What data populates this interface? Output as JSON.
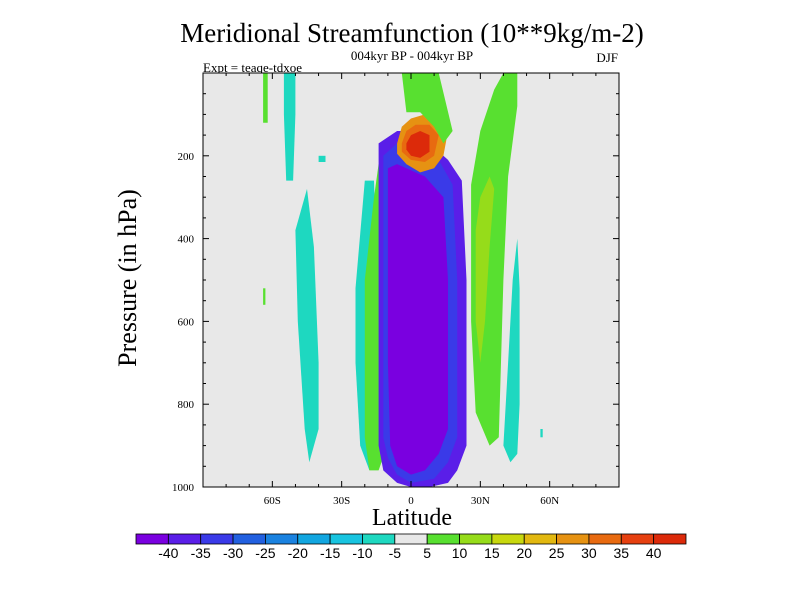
{
  "chart_data": {
    "type": "heatmap",
    "title": "Meridional Streamfunction (10**9kg/m-2)",
    "subtitle": "004kyr BP - 004kyr BP",
    "left_label": "Expt = teaqe-tdxoe",
    "right_label": "DJF",
    "xlabel": "Latitude",
    "ylabel": "Pressure (in hPa)",
    "xlim": [
      -90,
      90
    ],
    "ylim": [
      0,
      1000
    ],
    "x_ticks": [
      {
        "value": -60,
        "label": "60S"
      },
      {
        "value": -30,
        "label": "30S"
      },
      {
        "value": 0,
        "label": "0"
      },
      {
        "value": 30,
        "label": "30N"
      },
      {
        "value": 60,
        "label": "60N"
      }
    ],
    "y_ticks": [
      {
        "value": 200,
        "label": "200"
      },
      {
        "value": 400,
        "label": "400"
      },
      {
        "value": 600,
        "label": "600"
      },
      {
        "value": 800,
        "label": "800"
      },
      {
        "value": 1000,
        "label": "1000"
      }
    ],
    "colorbar": {
      "levels": [
        "-40",
        "-35",
        "-30",
        "-25",
        "-20",
        "-15",
        "-10",
        "-5",
        "5",
        "10",
        "15",
        "20",
        "25",
        "30",
        "35",
        "40"
      ],
      "colors": [
        "#7a00e0",
        "#5a1ee8",
        "#3a3ae8",
        "#2260e0",
        "#1a82e0",
        "#12a6e0",
        "#18c4e0",
        "#1ed8c0",
        "#e8e8e8",
        "#58e030",
        "#96dc1a",
        "#c8d80e",
        "#e2b810",
        "#e69212",
        "#e86a10",
        "#e64010",
        "#dc2a0a"
      ]
    },
    "regions": [
      {
        "name": "background-band",
        "class": 8,
        "poly": [
          [
            -90,
            1000
          ],
          [
            -90,
            0
          ],
          [
            90,
            0
          ],
          [
            90,
            1000
          ]
        ]
      },
      {
        "name": "neutral-patch-sh",
        "class": 8,
        "poly": [
          [
            -78,
            1000
          ],
          [
            -78,
            120
          ],
          [
            -68,
            120
          ],
          [
            -70,
            330
          ],
          [
            -74,
            780
          ],
          [
            -72,
            1000
          ]
        ]
      },
      {
        "name": "neutral-patch-nh",
        "class": 8,
        "poly": [
          [
            62,
            1000
          ],
          [
            60,
            500
          ],
          [
            62,
            250
          ],
          [
            72,
            250
          ],
          [
            72,
            1000
          ]
        ]
      },
      {
        "name": "green-strip-sh-top",
        "class": 9,
        "poly": [
          [
            -64,
            0
          ],
          [
            -62,
            0
          ],
          [
            -62,
            120
          ],
          [
            -64,
            120
          ]
        ]
      },
      {
        "name": "cyan-strip-sh-top",
        "class": 7,
        "poly": [
          [
            -55,
            0
          ],
          [
            -50,
            0
          ],
          [
            -50,
            100
          ],
          [
            -51,
            260
          ],
          [
            -54,
            260
          ],
          [
            -55,
            100
          ]
        ]
      },
      {
        "name": "cyan-speck-sh",
        "class": 7,
        "poly": [
          [
            -40,
            200
          ],
          [
            -37,
            200
          ],
          [
            -37,
            215
          ],
          [
            -40,
            215
          ]
        ]
      },
      {
        "name": "cyan-column-sh",
        "class": 7,
        "poly": [
          [
            -50,
            380
          ],
          [
            -45,
            280
          ],
          [
            -42,
            420
          ],
          [
            -40,
            700
          ],
          [
            -40,
            860
          ],
          [
            -44,
            940
          ],
          [
            -46,
            860
          ],
          [
            -49,
            600
          ]
        ]
      },
      {
        "name": "green-speck-sh",
        "class": 9,
        "poly": [
          [
            -64,
            520
          ],
          [
            -63,
            520
          ],
          [
            -63,
            560
          ],
          [
            -64,
            560
          ]
        ]
      },
      {
        "name": "cyan-column-mid",
        "class": 7,
        "poly": [
          [
            -24,
            520
          ],
          [
            -20,
            260
          ],
          [
            -16,
            260
          ],
          [
            -14,
            600
          ],
          [
            -14,
            900
          ],
          [
            -18,
            960
          ],
          [
            -22,
            900
          ],
          [
            -24,
            700
          ]
        ]
      },
      {
        "name": "green-column-sh",
        "class": 9,
        "poly": [
          [
            -20,
            880
          ],
          [
            -20,
            500
          ],
          [
            -16,
            300
          ],
          [
            -14,
            220
          ],
          [
            -10,
            210
          ],
          [
            -9,
            500
          ],
          [
            -9,
            880
          ],
          [
            -14,
            960
          ],
          [
            -18,
            960
          ]
        ]
      },
      {
        "name": "purple-core-outer",
        "class": 1,
        "poly": [
          [
            -14,
            170
          ],
          [
            -6,
            140
          ],
          [
            4,
            140
          ],
          [
            10,
            180
          ],
          [
            16,
            210
          ],
          [
            22,
            260
          ],
          [
            24,
            500
          ],
          [
            24,
            900
          ],
          [
            20,
            960
          ],
          [
            16,
            990
          ],
          [
            8,
            1000
          ],
          [
            0,
            1000
          ],
          [
            -6,
            990
          ],
          [
            -12,
            960
          ],
          [
            -14,
            900
          ],
          [
            -14,
            500
          ]
        ]
      },
      {
        "name": "purple-core-mid",
        "class": 2,
        "poly": [
          [
            -12,
            200
          ],
          [
            -6,
            170
          ],
          [
            4,
            170
          ],
          [
            12,
            210
          ],
          [
            18,
            270
          ],
          [
            20,
            500
          ],
          [
            20,
            880
          ],
          [
            16,
            940
          ],
          [
            10,
            980
          ],
          [
            0,
            990
          ],
          [
            -6,
            970
          ],
          [
            -10,
            930
          ],
          [
            -12,
            880
          ],
          [
            -12,
            500
          ]
        ]
      },
      {
        "name": "purple-core-inner",
        "class": 0,
        "poly": [
          [
            -10,
            230
          ],
          [
            -6,
            220
          ],
          [
            6,
            250
          ],
          [
            14,
            300
          ],
          [
            16,
            500
          ],
          [
            16,
            860
          ],
          [
            12,
            920
          ],
          [
            6,
            960
          ],
          [
            0,
            970
          ],
          [
            -6,
            950
          ],
          [
            -9,
            900
          ],
          [
            -10,
            700
          ],
          [
            -10,
            400
          ]
        ]
      },
      {
        "name": "red-core-outer",
        "class": 13,
        "poly": [
          [
            -6,
            170
          ],
          [
            -4,
            130
          ],
          [
            0,
            110
          ],
          [
            6,
            100
          ],
          [
            12,
            110
          ],
          [
            16,
            140
          ],
          [
            14,
            200
          ],
          [
            10,
            230
          ],
          [
            4,
            240
          ],
          [
            -2,
            220
          ],
          [
            -6,
            195
          ]
        ]
      },
      {
        "name": "red-core-mid",
        "class": 14,
        "poly": [
          [
            -4,
            170
          ],
          [
            -2,
            140
          ],
          [
            2,
            125
          ],
          [
            8,
            125
          ],
          [
            12,
            150
          ],
          [
            10,
            200
          ],
          [
            6,
            215
          ],
          [
            0,
            210
          ],
          [
            -4,
            190
          ]
        ]
      },
      {
        "name": "red-core-inner",
        "class": 16,
        "poly": [
          [
            -2,
            170
          ],
          [
            0,
            150
          ],
          [
            4,
            140
          ],
          [
            8,
            150
          ],
          [
            8,
            190
          ],
          [
            4,
            205
          ],
          [
            0,
            200
          ],
          [
            -2,
            185
          ]
        ]
      },
      {
        "name": "green-halo-top",
        "class": 9,
        "poly": [
          [
            -4,
            0
          ],
          [
            12,
            0
          ],
          [
            18,
            140
          ],
          [
            14,
            170
          ],
          [
            10,
            130
          ],
          [
            4,
            95
          ],
          [
            -2,
            95
          ]
        ]
      },
      {
        "name": "green-column-nh",
        "class": 9,
        "poly": [
          [
            26,
            270
          ],
          [
            30,
            140
          ],
          [
            36,
            40
          ],
          [
            40,
            0
          ],
          [
            46,
            0
          ],
          [
            46,
            80
          ],
          [
            42,
            250
          ],
          [
            40,
            500
          ],
          [
            38,
            880
          ],
          [
            34,
            900
          ],
          [
            28,
            820
          ],
          [
            26,
            600
          ]
        ]
      },
      {
        "name": "yellow-column-nh",
        "class": 10,
        "poly": [
          [
            28,
            380
          ],
          [
            30,
            300
          ],
          [
            34,
            250
          ],
          [
            36,
            280
          ],
          [
            34,
            420
          ],
          [
            32,
            600
          ],
          [
            30,
            700
          ],
          [
            28,
            600
          ]
        ]
      },
      {
        "name": "cyan-column-nh",
        "class": 7,
        "poly": [
          [
            40,
            900
          ],
          [
            42,
            700
          ],
          [
            44,
            500
          ],
          [
            46,
            400
          ],
          [
            47,
            520
          ],
          [
            47,
            800
          ],
          [
            46,
            920
          ],
          [
            43,
            940
          ]
        ]
      },
      {
        "name": "cyan-speck-nh",
        "class": 7,
        "poly": [
          [
            56,
            860
          ],
          [
            57,
            860
          ],
          [
            57,
            880
          ],
          [
            56,
            880
          ]
        ]
      }
    ]
  }
}
